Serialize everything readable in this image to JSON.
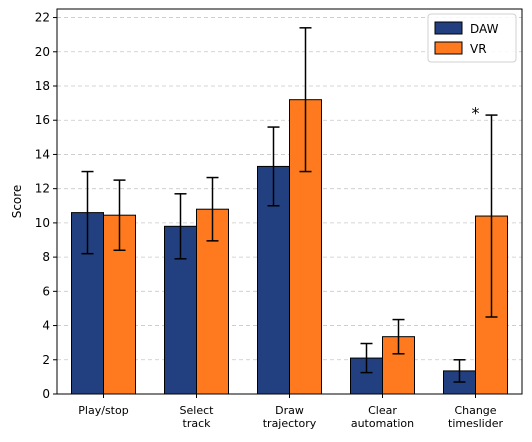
{
  "chart_data": {
    "type": "bar",
    "title": "",
    "xlabel": "",
    "ylabel": "Score",
    "ylim": [
      0,
      22.5
    ],
    "yticks": [
      0,
      2,
      4,
      6,
      8,
      10,
      12,
      14,
      16,
      18,
      20,
      22
    ],
    "grid": "horizontal dashed",
    "legend_position": "top-right",
    "categories": [
      [
        "Play/stop"
      ],
      [
        "Select",
        "track"
      ],
      [
        "Draw",
        "trajectory"
      ],
      [
        "Clear",
        "automation"
      ],
      [
        "Change",
        "timeslider"
      ]
    ],
    "series": [
      {
        "name": "DAW",
        "color": "#22407f",
        "values": [
          10.6,
          9.8,
          13.3,
          2.1,
          1.35
        ],
        "errors": [
          2.4,
          1.9,
          2.3,
          0.85,
          0.65
        ]
      },
      {
        "name": "VR",
        "color": "#ff7a1e",
        "values": [
          10.45,
          10.8,
          17.2,
          3.35,
          10.4
        ],
        "errors": [
          2.05,
          1.85,
          4.2,
          1.0,
          5.9
        ]
      }
    ],
    "annotations": [
      {
        "text": "*",
        "category_index": 4
      }
    ]
  }
}
